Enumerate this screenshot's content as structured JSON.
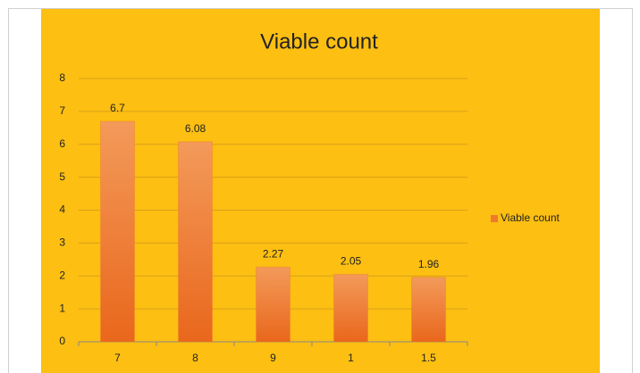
{
  "chart_data": {
    "type": "bar",
    "title": "Viable count",
    "categories": [
      "7",
      "8",
      "9",
      "1",
      "1.5"
    ],
    "series": [
      {
        "name": "Viable count",
        "color": "#f07a2c",
        "values": [
          6.7,
          6.08,
          2.27,
          2.05,
          1.96
        ]
      }
    ],
    "ylim": [
      0,
      8
    ],
    "yticks": [
      0,
      1,
      2,
      3,
      4,
      5,
      6,
      7,
      8
    ],
    "grid": true,
    "legend": "right"
  }
}
